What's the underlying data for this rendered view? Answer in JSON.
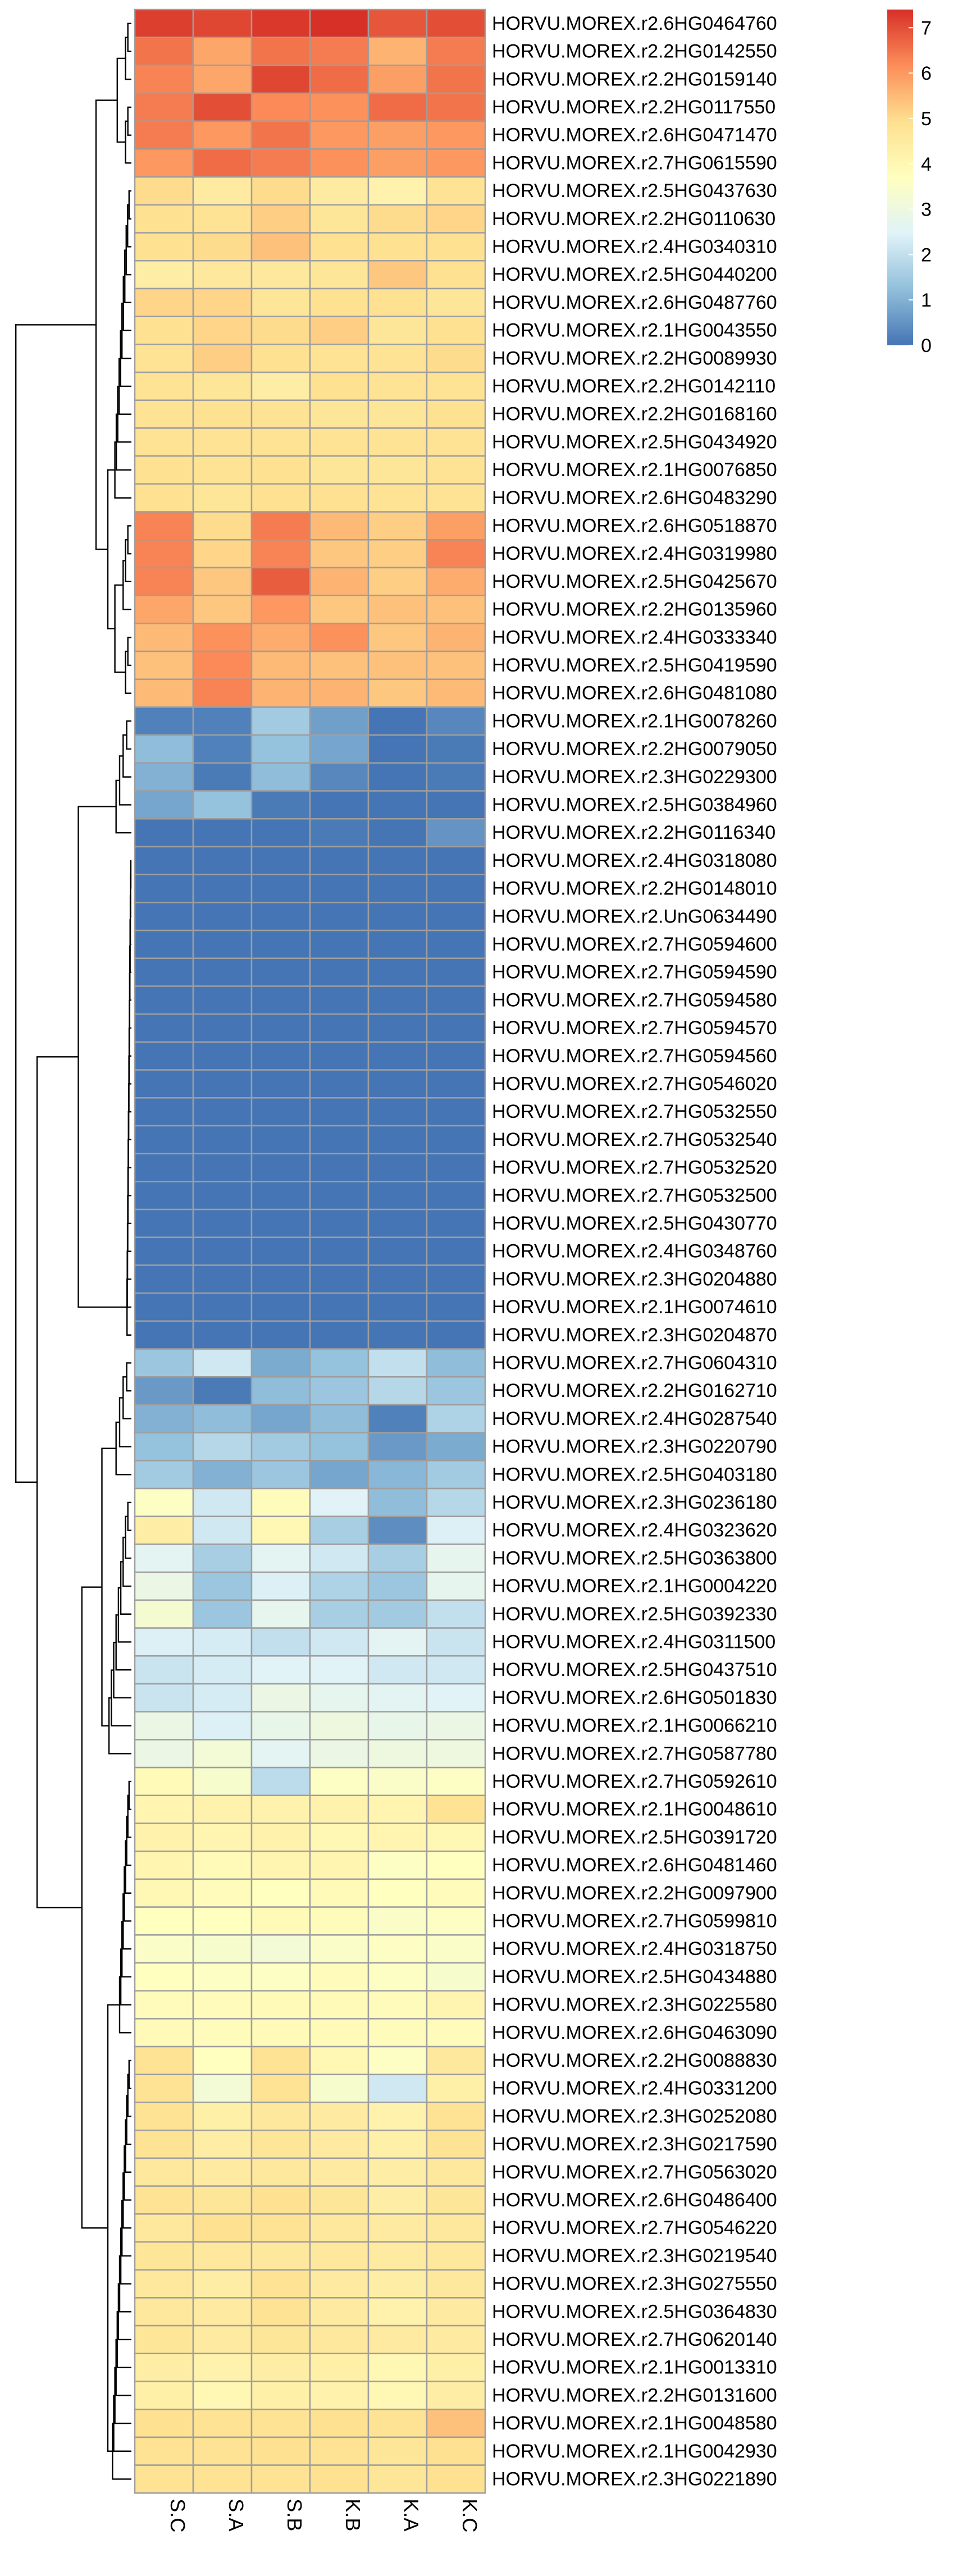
{
  "chart_data": {
    "type": "heatmap",
    "title": "",
    "xlabel": "",
    "ylabel": "",
    "columns": [
      "S.C",
      "S.A",
      "S.B",
      "K.B",
      "K.A",
      "K.C"
    ],
    "rows": [
      "HORVU.MOREX.r2.6HG0464760",
      "HORVU.MOREX.r2.2HG0142550",
      "HORVU.MOREX.r2.2HG0159140",
      "HORVU.MOREX.r2.2HG0117550",
      "HORVU.MOREX.r2.6HG0471470",
      "HORVU.MOREX.r2.7HG0615590",
      "HORVU.MOREX.r2.5HG0437630",
      "HORVU.MOREX.r2.2HG0110630",
      "HORVU.MOREX.r2.4HG0340310",
      "HORVU.MOREX.r2.5HG0440200",
      "HORVU.MOREX.r2.6HG0487760",
      "HORVU.MOREX.r2.1HG0043550",
      "HORVU.MOREX.r2.2HG0089930",
      "HORVU.MOREX.r2.2HG0142110",
      "HORVU.MOREX.r2.2HG0168160",
      "HORVU.MOREX.r2.5HG0434920",
      "HORVU.MOREX.r2.1HG0076850",
      "HORVU.MOREX.r2.6HG0483290",
      "HORVU.MOREX.r2.6HG0518870",
      "HORVU.MOREX.r2.4HG0319980",
      "HORVU.MOREX.r2.5HG0425670",
      "HORVU.MOREX.r2.2HG0135960",
      "HORVU.MOREX.r2.4HG0333340",
      "HORVU.MOREX.r2.5HG0419590",
      "HORVU.MOREX.r2.6HG0481080",
      "HORVU.MOREX.r2.1HG0078260",
      "HORVU.MOREX.r2.2HG0079050",
      "HORVU.MOREX.r2.3HG0229300",
      "HORVU.MOREX.r2.5HG0384960",
      "HORVU.MOREX.r2.2HG0116340",
      "HORVU.MOREX.r2.4HG0318080",
      "HORVU.MOREX.r2.2HG0148010",
      "HORVU.MOREX.r2.UnG0634490",
      "HORVU.MOREX.r2.7HG0594600",
      "HORVU.MOREX.r2.7HG0594590",
      "HORVU.MOREX.r2.7HG0594580",
      "HORVU.MOREX.r2.7HG0594570",
      "HORVU.MOREX.r2.7HG0594560",
      "HORVU.MOREX.r2.7HG0546020",
      "HORVU.MOREX.r2.7HG0532550",
      "HORVU.MOREX.r2.7HG0532540",
      "HORVU.MOREX.r2.7HG0532520",
      "HORVU.MOREX.r2.7HG0532500",
      "HORVU.MOREX.r2.5HG0430770",
      "HORVU.MOREX.r2.4HG0348760",
      "HORVU.MOREX.r2.3HG0204880",
      "HORVU.MOREX.r2.1HG0074610",
      "HORVU.MOREX.r2.3HG0204870",
      "HORVU.MOREX.r2.7HG0604310",
      "HORVU.MOREX.r2.2HG0162710",
      "HORVU.MOREX.r2.4HG0287540",
      "HORVU.MOREX.r2.3HG0220790",
      "HORVU.MOREX.r2.5HG0403180",
      "HORVU.MOREX.r2.3HG0236180",
      "HORVU.MOREX.r2.4HG0323620",
      "HORVU.MOREX.r2.5HG0363800",
      "HORVU.MOREX.r2.1HG0004220",
      "HORVU.MOREX.r2.5HG0392330",
      "HORVU.MOREX.r2.4HG0311500",
      "HORVU.MOREX.r2.5HG0437510",
      "HORVU.MOREX.r2.6HG0501830",
      "HORVU.MOREX.r2.1HG0066210",
      "HORVU.MOREX.r2.7HG0587780",
      "HORVU.MOREX.r2.7HG0592610",
      "HORVU.MOREX.r2.1HG0048610",
      "HORVU.MOREX.r2.5HG0391720",
      "HORVU.MOREX.r2.6HG0481460",
      "HORVU.MOREX.r2.2HG0097900",
      "HORVU.MOREX.r2.7HG0599810",
      "HORVU.MOREX.r2.4HG0318750",
      "HORVU.MOREX.r2.5HG0434880",
      "HORVU.MOREX.r2.3HG0225580",
      "HORVU.MOREX.r2.6HG0463090",
      "HORVU.MOREX.r2.2HG0088830",
      "HORVU.MOREX.r2.4HG0331200",
      "HORVU.MOREX.r2.3HG0252080",
      "HORVU.MOREX.r2.3HG0217590",
      "HORVU.MOREX.r2.7HG0563020",
      "HORVU.MOREX.r2.6HG0486400",
      "HORVU.MOREX.r2.7HG0546220",
      "HORVU.MOREX.r2.3HG0219540",
      "HORVU.MOREX.r2.3HG0275550",
      "HORVU.MOREX.r2.5HG0364830",
      "HORVU.MOREX.r2.7HG0620140",
      "HORVU.MOREX.r2.1HG0013310",
      "HORVU.MOREX.r2.2HG0131600",
      "HORVU.MOREX.r2.1HG0048580",
      "HORVU.MOREX.r2.1HG0042930",
      "HORVU.MOREX.r2.3HG0221890"
    ],
    "values": [
      [
        7.2,
        7.1,
        7.3,
        7.4,
        6.9,
        7.0
      ],
      [
        6.5,
        5.8,
        6.5,
        6.4,
        5.6,
        6.4
      ],
      [
        6.3,
        5.8,
        7.1,
        6.6,
        5.9,
        6.5
      ],
      [
        6.4,
        7.0,
        6.2,
        6.1,
        6.6,
        6.5
      ],
      [
        6.4,
        6.0,
        6.5,
        6.0,
        5.9,
        6.0
      ],
      [
        6.0,
        6.6,
        6.4,
        6.1,
        5.9,
        6.0
      ],
      [
        5.0,
        4.5,
        5.0,
        4.5,
        4.2,
        4.8
      ],
      [
        4.9,
        4.8,
        5.2,
        4.7,
        5.0,
        5.1
      ],
      [
        4.9,
        5.0,
        5.4,
        4.9,
        4.9,
        4.9
      ],
      [
        4.4,
        4.6,
        4.6,
        4.7,
        5.3,
        4.9
      ],
      [
        5.1,
        5.1,
        4.7,
        4.9,
        4.9,
        4.7
      ],
      [
        4.9,
        5.1,
        5.0,
        5.2,
        4.7,
        4.9
      ],
      [
        4.8,
        5.2,
        4.9,
        4.8,
        4.8,
        5.0
      ],
      [
        4.8,
        4.7,
        4.4,
        4.9,
        4.8,
        4.8
      ],
      [
        4.8,
        4.9,
        4.8,
        4.7,
        4.7,
        4.9
      ],
      [
        4.8,
        4.8,
        4.8,
        4.8,
        4.8,
        4.8
      ],
      [
        4.9,
        4.8,
        4.9,
        4.7,
        4.7,
        4.8
      ],
      [
        4.9,
        4.7,
        4.9,
        4.9,
        4.8,
        4.8
      ],
      [
        6.3,
        5.0,
        6.4,
        5.5,
        5.2,
        5.9
      ],
      [
        6.3,
        5.1,
        6.3,
        5.3,
        5.2,
        6.3
      ],
      [
        6.3,
        5.3,
        6.8,
        5.6,
        5.2,
        5.7
      ],
      [
        5.8,
        5.3,
        6.0,
        5.3,
        5.4,
        5.4
      ],
      [
        5.5,
        6.1,
        5.7,
        6.1,
        5.3,
        5.6
      ],
      [
        5.4,
        6.2,
        5.5,
        5.4,
        5.4,
        5.4
      ],
      [
        5.5,
        6.3,
        5.6,
        5.6,
        5.3,
        5.5
      ],
      [
        0.2,
        0.2,
        1.5,
        0.7,
        0.0,
        0.3
      ],
      [
        1.2,
        0.2,
        1.3,
        0.8,
        0.0,
        0.1
      ],
      [
        1.0,
        0.1,
        1.2,
        0.3,
        0.0,
        0.1
      ],
      [
        0.8,
        1.3,
        0.1,
        0.0,
        0.0,
        0.0
      ],
      [
        0.0,
        0.0,
        0.0,
        0.1,
        0.0,
        0.5
      ],
      [
        0.0,
        0.0,
        0.0,
        0.0,
        0.0,
        0.0
      ],
      [
        0.0,
        0.0,
        0.0,
        0.0,
        0.0,
        0.0
      ],
      [
        0.0,
        0.0,
        0.0,
        0.0,
        0.0,
        0.0
      ],
      [
        0.0,
        0.0,
        0.0,
        0.0,
        0.0,
        0.0
      ],
      [
        0.0,
        0.0,
        0.0,
        0.0,
        0.0,
        0.0
      ],
      [
        0.0,
        0.0,
        0.0,
        0.0,
        0.0,
        0.0
      ],
      [
        0.0,
        0.0,
        0.0,
        0.0,
        0.0,
        0.0
      ],
      [
        0.0,
        0.0,
        0.0,
        0.0,
        0.0,
        0.0
      ],
      [
        0.0,
        0.0,
        0.0,
        0.0,
        0.0,
        0.0
      ],
      [
        0.0,
        0.0,
        0.0,
        0.0,
        0.0,
        0.0
      ],
      [
        0.0,
        0.0,
        0.0,
        0.0,
        0.0,
        0.0
      ],
      [
        0.0,
        0.0,
        0.0,
        0.0,
        0.0,
        0.0
      ],
      [
        0.0,
        0.0,
        0.0,
        0.0,
        0.0,
        0.0
      ],
      [
        0.0,
        0.0,
        0.0,
        0.0,
        0.0,
        0.0
      ],
      [
        0.0,
        0.0,
        0.0,
        0.0,
        0.0,
        0.0
      ],
      [
        0.0,
        0.0,
        0.0,
        0.0,
        0.0,
        0.0
      ],
      [
        0.0,
        0.0,
        0.0,
        0.0,
        0.0,
        0.0
      ],
      [
        0.0,
        0.0,
        0.0,
        0.0,
        0.0,
        0.0
      ],
      [
        1.4,
        2.2,
        0.9,
        1.3,
        2.0,
        1.2
      ],
      [
        0.6,
        0.1,
        1.2,
        1.4,
        1.8,
        1.4
      ],
      [
        1.0,
        1.2,
        0.8,
        1.2,
        0.2,
        1.7
      ],
      [
        1.3,
        1.8,
        1.5,
        1.3,
        0.6,
        0.9
      ],
      [
        1.5,
        1.0,
        1.4,
        0.8,
        1.1,
        1.5
      ],
      [
        3.6,
        2.2,
        3.8,
        2.5,
        1.2,
        1.8
      ],
      [
        4.4,
        2.2,
        4.0,
        1.6,
        0.4,
        2.4
      ],
      [
        2.6,
        1.6,
        2.6,
        2.2,
        1.6,
        2.7
      ],
      [
        2.9,
        1.4,
        2.4,
        1.7,
        1.4,
        2.7
      ],
      [
        3.3,
        1.4,
        2.7,
        1.6,
        1.5,
        2.0
      ],
      [
        2.4,
        2.3,
        2.0,
        2.2,
        2.6,
        2.1
      ],
      [
        2.1,
        2.3,
        2.5,
        2.5,
        2.2,
        2.2
      ],
      [
        2.1,
        2.3,
        2.9,
        2.7,
        2.6,
        2.5
      ],
      [
        2.9,
        2.4,
        2.8,
        3.0,
        2.8,
        2.9
      ],
      [
        2.9,
        3.2,
        2.6,
        2.9,
        3.0,
        3.0
      ],
      [
        3.9,
        3.4,
        1.9,
        3.6,
        3.5,
        3.6
      ],
      [
        4.1,
        4.2,
        4.2,
        4.2,
        4.1,
        4.8
      ],
      [
        4.2,
        4.1,
        4.2,
        4.0,
        4.1,
        4.0
      ],
      [
        4.1,
        3.9,
        4.1,
        4.1,
        3.6,
        3.7
      ],
      [
        4.0,
        3.8,
        3.7,
        3.9,
        3.7,
        3.8
      ],
      [
        3.7,
        3.7,
        3.9,
        3.8,
        3.5,
        3.6
      ],
      [
        3.5,
        3.4,
        3.2,
        3.5,
        3.6,
        3.5
      ],
      [
        3.7,
        3.6,
        3.6,
        3.8,
        3.6,
        3.4
      ],
      [
        3.8,
        3.8,
        3.9,
        3.9,
        3.8,
        4.1
      ],
      [
        3.9,
        3.8,
        3.9,
        3.9,
        3.8,
        3.8
      ],
      [
        4.8,
        3.7,
        4.8,
        4.0,
        3.6,
        4.6
      ],
      [
        4.8,
        3.2,
        4.8,
        3.4,
        2.2,
        4.3
      ],
      [
        4.8,
        4.3,
        4.6,
        4.5,
        4.2,
        4.8
      ],
      [
        4.8,
        4.4,
        4.7,
        4.5,
        4.3,
        4.8
      ],
      [
        4.6,
        4.5,
        4.6,
        4.5,
        4.4,
        4.6
      ],
      [
        4.8,
        4.7,
        4.9,
        4.7,
        4.4,
        4.7
      ],
      [
        4.6,
        4.9,
        4.8,
        4.6,
        4.5,
        4.6
      ],
      [
        4.7,
        4.6,
        4.6,
        4.6,
        4.5,
        4.6
      ],
      [
        4.6,
        4.4,
        4.8,
        4.5,
        4.4,
        4.6
      ],
      [
        4.6,
        4.5,
        4.8,
        4.5,
        4.2,
        4.5
      ],
      [
        4.7,
        4.5,
        4.7,
        4.6,
        4.5,
        4.5
      ],
      [
        4.4,
        4.2,
        4.4,
        4.3,
        4.0,
        4.3
      ],
      [
        4.3,
        4.0,
        4.3,
        4.2,
        4.0,
        4.4
      ],
      [
        4.9,
        4.8,
        4.8,
        4.9,
        4.8,
        5.4
      ],
      [
        4.8,
        4.8,
        4.9,
        4.8,
        4.7,
        4.9
      ],
      [
        4.8,
        4.8,
        4.8,
        4.9,
        4.7,
        4.9
      ]
    ],
    "legend": {
      "min": 0,
      "max": 7.4,
      "ticks": [
        0,
        1,
        2,
        3,
        4,
        5,
        6,
        7
      ],
      "placement": "top-right",
      "colors": [
        "#4575b4",
        "#91bfdb",
        "#e0f3f8",
        "#ffffbf",
        "#fee090",
        "#fc8d59",
        "#d73027"
      ]
    },
    "dendrogram": {
      "rows": true,
      "columns": false
    },
    "grid": true
  }
}
